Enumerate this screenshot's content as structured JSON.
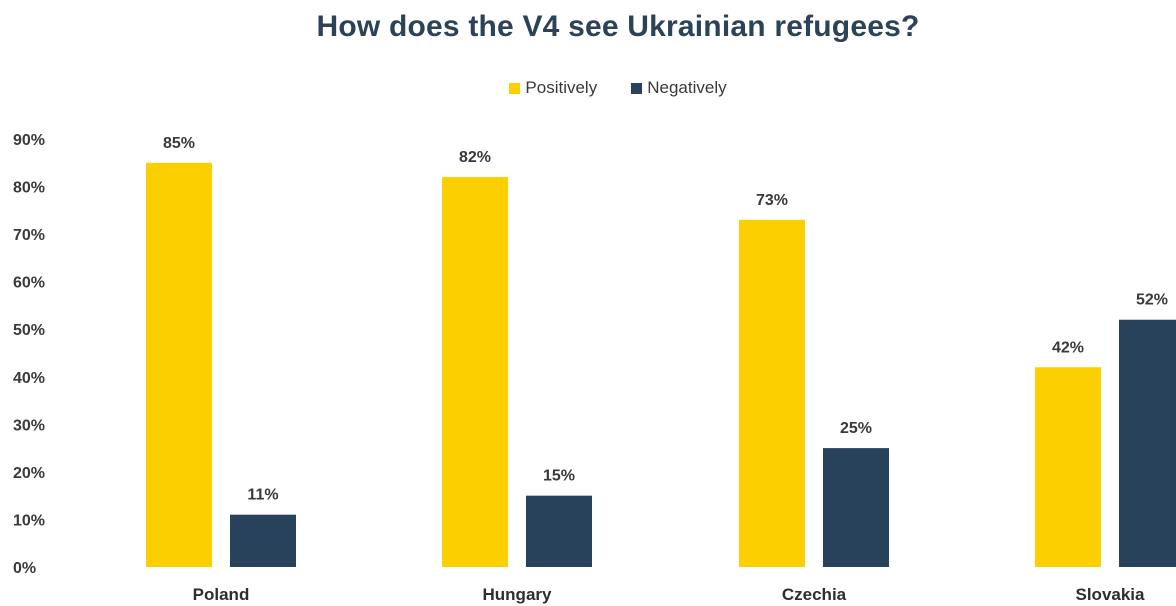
{
  "chart_data": {
    "type": "bar",
    "title": "How does the V4 see Ukrainian refugees?",
    "categories": [
      "Poland",
      "Hungary",
      "Czechia",
      "Slovakia"
    ],
    "series": [
      {
        "name": "Positively",
        "values": [
          85,
          82,
          73,
          42
        ],
        "color": "#fcd000"
      },
      {
        "name": "Negatively",
        "values": [
          11,
          15,
          25,
          52
        ],
        "color": "#27425a"
      }
    ],
    "data_labels": [
      [
        "85%",
        "82%",
        "73%",
        "42%"
      ],
      [
        "11%",
        "15%",
        "25%",
        "52%"
      ]
    ],
    "ylim": [
      0,
      90
    ],
    "y_ticks": [
      "0%",
      "10%",
      "20%",
      "30%",
      "40%",
      "50%",
      "60%",
      "70%",
      "80%",
      "90%"
    ],
    "y_tick_values": [
      0,
      10,
      20,
      30,
      40,
      50,
      60,
      70,
      80,
      90
    ],
    "legend_position": "top-center",
    "grid": false,
    "colors": {
      "title": "#2b4257",
      "text": "#3a3a3a"
    }
  }
}
